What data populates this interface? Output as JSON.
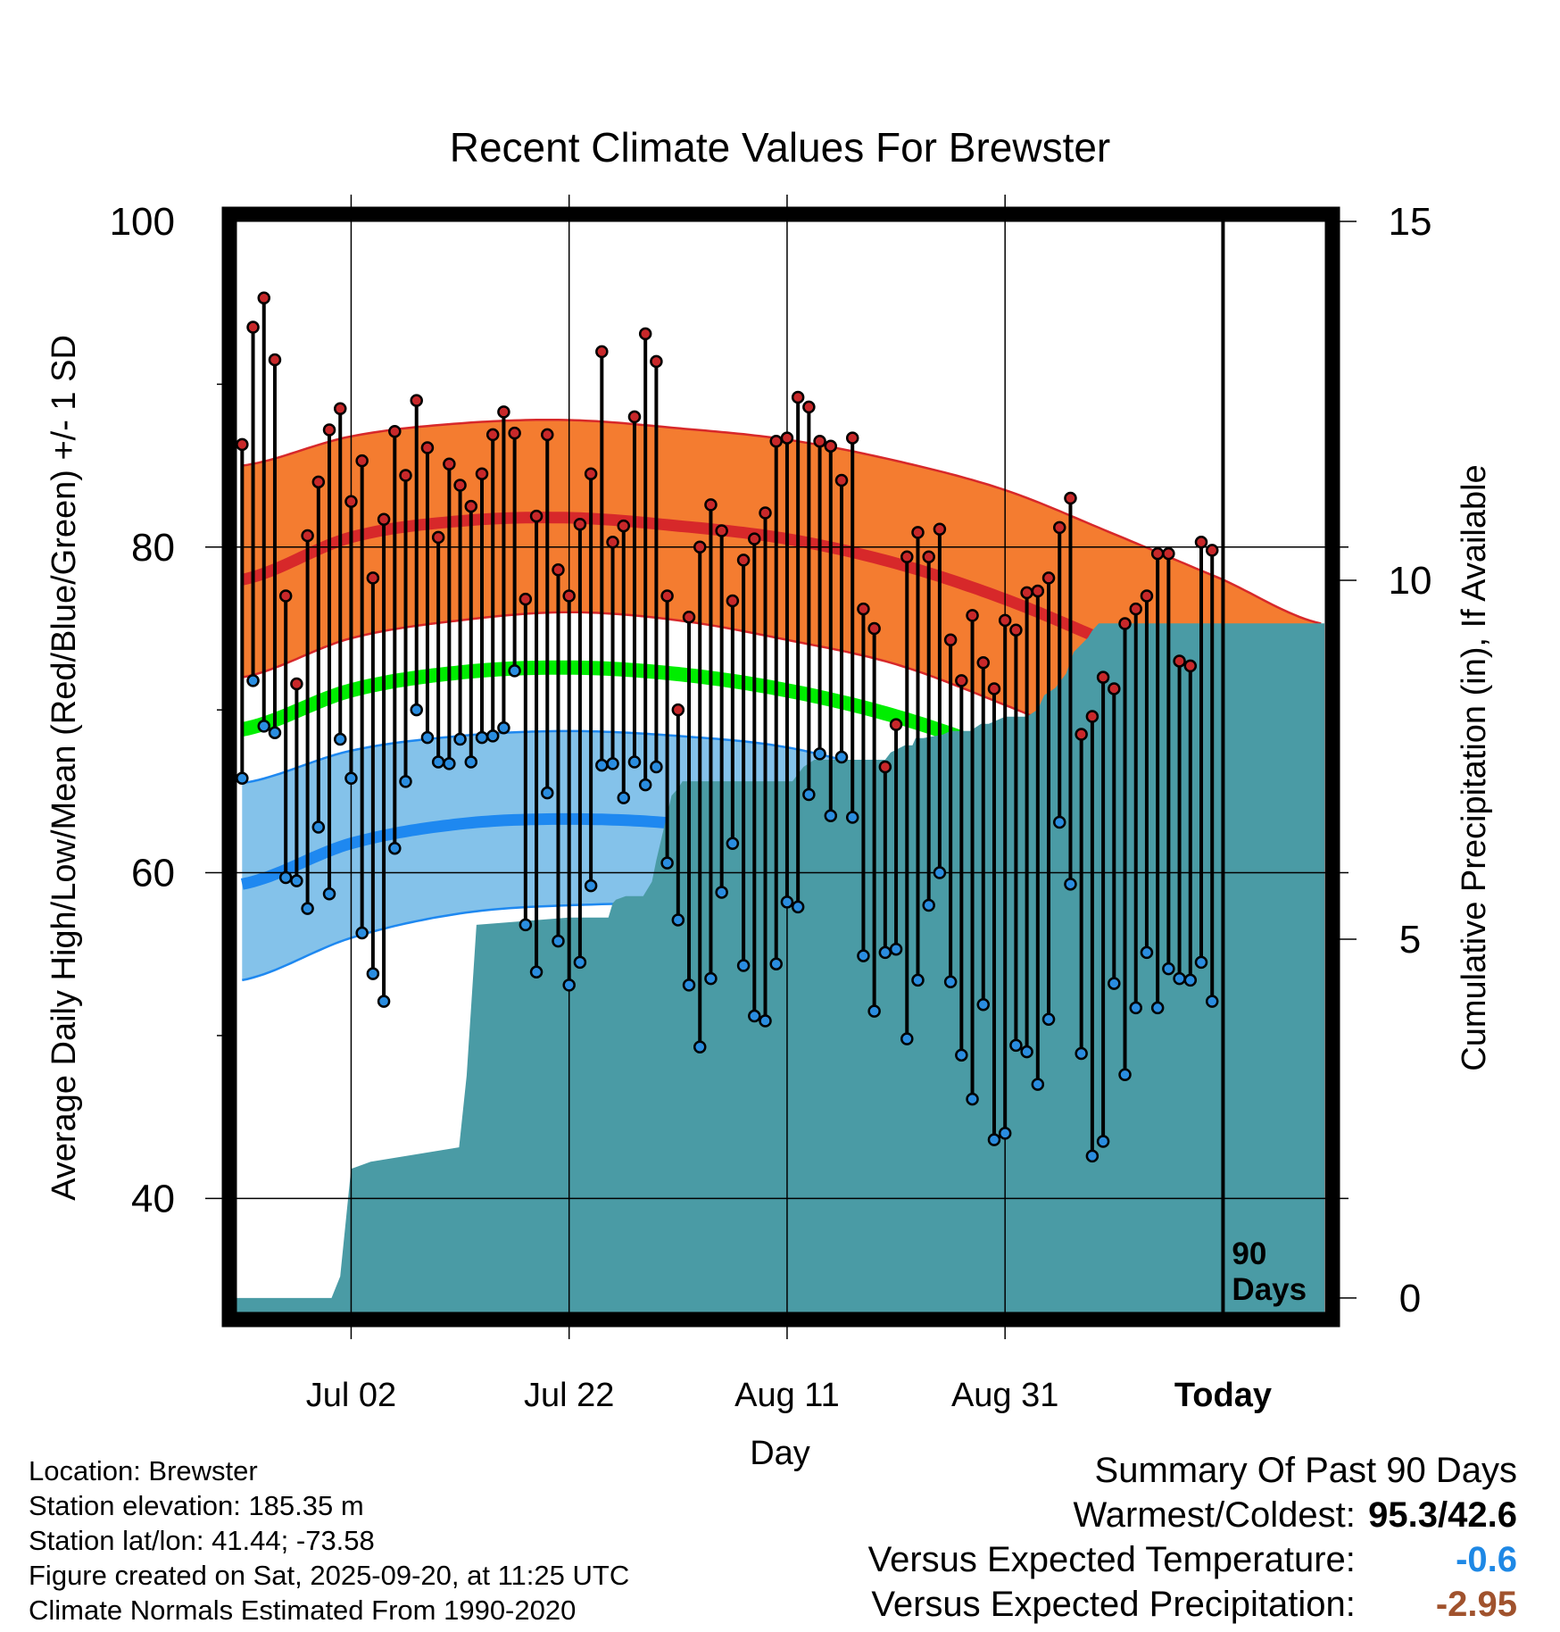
{
  "chart_data": {
    "type": "line",
    "title": "Recent Climate Values For Brewster",
    "xlabel": "Day",
    "ylabel_left": "Average Daily High/Low/Mean (Red/Blue/Green) +/- 1 SD",
    "ylabel_right": "Cumulative Precipitation (in), If Available",
    "ylim": [
      33,
      100
    ],
    "y2lim": [
      -0.2,
      15
    ],
    "xlim": [
      -10.6,
      89.3
    ],
    "left_ticks": [
      {
        "value": 100,
        "label": "100"
      },
      {
        "value": 80,
        "label": "80"
      },
      {
        "value": 60,
        "label": "60"
      },
      {
        "value": 40,
        "label": "40"
      }
    ],
    "left_minor_ticks": [
      90,
      70,
      50
    ],
    "right_ticks": [
      {
        "value": 15,
        "label": "15"
      },
      {
        "value": 10,
        "label": "10"
      },
      {
        "value": 5,
        "label": "5"
      },
      {
        "value": 0,
        "label": "0"
      }
    ],
    "x_ticks": [
      {
        "day": 0,
        "label": "Jul 02"
      },
      {
        "day": 20,
        "label": "Jul 22"
      },
      {
        "day": 40,
        "label": "Aug 11"
      },
      {
        "day": 60,
        "label": "Aug 31"
      },
      {
        "day": 80,
        "label": "Today"
      }
    ],
    "today_day": 80,
    "today_annotation": [
      "90",
      "Days"
    ],
    "normals": {
      "days": [
        -10,
        0,
        10,
        20,
        30,
        40,
        50,
        60,
        70,
        80,
        89
      ],
      "high_mean": [
        78.0,
        80.6,
        81.6,
        81.8,
        81.3,
        80.5,
        79.0,
        76.8,
        74.0,
        71.0,
        68.2
      ],
      "high_upper": [
        85.0,
        86.8,
        87.6,
        87.8,
        87.3,
        86.6,
        85.3,
        83.5,
        80.8,
        78.0,
        75.3
      ],
      "high_lower": [
        72.0,
        74.4,
        75.5,
        76.0,
        75.5,
        74.3,
        72.8,
        70.3,
        67.5,
        64.5,
        61.3
      ],
      "avg_mean": [
        68.8,
        71.2,
        72.3,
        72.6,
        72.2,
        71.2,
        69.6,
        67.3,
        64.5,
        61.6,
        58.8
      ],
      "low_mean": [
        59.3,
        61.8,
        63.0,
        63.3,
        63.0,
        62.0,
        60.2,
        57.8,
        55.0,
        52.2,
        49.7
      ],
      "low_upper": [
        65.5,
        67.5,
        68.4,
        68.7,
        68.4,
        67.7,
        66.0,
        64.0,
        61.5,
        59.0,
        57.4
      ],
      "low_lower": [
        53.4,
        56.0,
        57.5,
        58.0,
        58.0,
        57.0,
        55.0,
        52.2,
        49.0,
        46.0,
        43.0
      ]
    },
    "series": [
      {
        "name": "Daily High",
        "days": [
          -10,
          -9,
          -8,
          -7,
          -6,
          -5,
          -4,
          -3,
          -2,
          -1,
          0,
          1,
          2,
          3,
          4,
          5,
          6,
          7,
          8,
          9,
          10,
          11,
          12,
          13,
          14,
          15,
          16,
          17,
          18,
          19,
          20,
          21,
          22,
          23,
          24,
          25,
          26,
          27,
          28,
          29,
          30,
          31,
          32,
          33,
          34,
          35,
          36,
          37,
          38,
          39,
          40,
          41,
          42,
          43,
          44,
          45,
          46,
          47,
          48,
          49,
          50,
          51,
          52,
          53,
          54,
          55,
          56,
          57,
          58,
          59,
          60,
          61,
          62,
          63,
          64,
          65,
          66,
          67,
          68,
          69,
          70,
          71,
          72,
          73,
          74,
          75,
          76,
          77,
          78,
          79
        ],
        "values": [
          86.3,
          93.5,
          95.3,
          91.5,
          77.0,
          71.6,
          80.7,
          84.0,
          87.2,
          88.5,
          82.8,
          85.3,
          78.1,
          81.7,
          87.1,
          84.4,
          89.0,
          86.1,
          80.6,
          85.1,
          83.8,
          82.5,
          84.5,
          86.9,
          88.3,
          87.0,
          76.8,
          81.9,
          86.9,
          78.6,
          77.0,
          81.4,
          84.5,
          92.0,
          80.3,
          81.3,
          88.0,
          93.1,
          91.4,
          77.0,
          70.0,
          75.7,
          80.0,
          82.6,
          81.0,
          76.7,
          79.2,
          80.5,
          82.1,
          86.5,
          86.7,
          89.2,
          88.6,
          86.5,
          86.2,
          84.1,
          86.7,
          76.2,
          75.0,
          66.5,
          69.1,
          79.4,
          80.9,
          79.4,
          81.1,
          74.3,
          71.8,
          75.8,
          72.9,
          71.3,
          75.5,
          74.9,
          77.2,
          77.3,
          78.1,
          81.2,
          83.0,
          68.5,
          69.6,
          72.0,
          71.3,
          75.3,
          76.2,
          77.0,
          79.6,
          79.6,
          73.0,
          72.7,
          80.3,
          79.8
        ]
      },
      {
        "name": "Daily Low",
        "days": [
          -10,
          -9,
          -8,
          -7,
          -6,
          -5,
          -4,
          -3,
          -2,
          -1,
          0,
          1,
          2,
          3,
          4,
          5,
          6,
          7,
          8,
          9,
          10,
          11,
          12,
          13,
          14,
          15,
          16,
          17,
          18,
          19,
          20,
          21,
          22,
          23,
          24,
          25,
          26,
          27,
          28,
          29,
          30,
          31,
          32,
          33,
          34,
          35,
          36,
          37,
          38,
          39,
          40,
          41,
          42,
          43,
          44,
          45,
          46,
          47,
          48,
          49,
          50,
          51,
          52,
          53,
          54,
          55,
          56,
          57,
          58,
          59,
          60,
          61,
          62,
          63,
          64,
          65,
          66,
          67,
          68,
          69,
          70,
          71,
          72,
          73,
          74,
          75,
          76,
          77,
          78,
          79
        ],
        "values": [
          65.8,
          71.8,
          69.0,
          68.6,
          59.7,
          59.5,
          57.8,
          62.8,
          58.7,
          68.2,
          65.8,
          56.3,
          53.8,
          52.1,
          61.5,
          65.6,
          70.0,
          68.3,
          66.8,
          66.7,
          68.2,
          66.8,
          68.3,
          68.4,
          68.9,
          72.4,
          56.8,
          53.9,
          64.9,
          55.8,
          53.1,
          54.5,
          59.2,
          66.6,
          66.7,
          64.6,
          66.8,
          65.4,
          66.5,
          60.6,
          57.1,
          53.1,
          49.3,
          53.5,
          58.8,
          61.8,
          54.3,
          51.2,
          50.9,
          54.4,
          58.2,
          57.9,
          64.8,
          67.3,
          63.5,
          67.1,
          63.4,
          54.9,
          51.5,
          55.1,
          55.3,
          49.8,
          53.4,
          58.0,
          60.0,
          53.3,
          48.8,
          46.1,
          51.9,
          43.6,
          44.0,
          49.4,
          49.0,
          47.0,
          51.0,
          63.1,
          59.3,
          48.9,
          42.6,
          43.5,
          53.2,
          47.6,
          51.7,
          55.1,
          51.7,
          54.1,
          53.5,
          53.4,
          54.5,
          52.1
        ]
      },
      {
        "name": "Cumulative Precipitation",
        "days": [
          -10.6,
          -2.2,
          -1.8,
          -1.0,
          0.0,
          1.8,
          9.9,
          10.6,
          11.5,
          20,
          23.6,
          24.0,
          24.3,
          25.2,
          26.8,
          27.6,
          28.0,
          29.4,
          30.0,
          30.4,
          31.0,
          36.0,
          38.0,
          40.5,
          41.5,
          42.5,
          49.0,
          49.5,
          50.8,
          51.5,
          51.8,
          52.5,
          54.3,
          55.0,
          56.8,
          57.8,
          58.5,
          60.0,
          61.0,
          62.0,
          63.0,
          63.6,
          64.6,
          65.6,
          66.3,
          67.6,
          68.0,
          68.6,
          89.3
        ],
        "values": [
          0,
          0,
          0,
          0.3,
          1.8,
          1.9,
          2.1,
          3.1,
          5.2,
          5.3,
          5.3,
          5.5,
          5.55,
          5.6,
          5.6,
          5.8,
          6.1,
          7.0,
          7.1,
          7.2,
          7.2,
          7.2,
          7.2,
          7.2,
          7.4,
          7.5,
          7.5,
          7.6,
          7.7,
          7.7,
          7.8,
          7.8,
          7.85,
          7.9,
          7.9,
          8.0,
          8.0,
          8.1,
          8.1,
          8.1,
          8.2,
          8.4,
          8.5,
          8.7,
          9.0,
          9.2,
          9.3,
          9.4,
          9.4
        ]
      }
    ]
  },
  "footer": {
    "location": "Location: Brewster",
    "elevation": "Station elevation: 185.35 m",
    "latlon": "Station lat/lon: 41.44; -73.58",
    "created": "Figure created on Sat, 2025-09-20, at 11:25 UTC",
    "normals_period": "Climate Normals Estimated From 1990-2020"
  },
  "summary": {
    "heading": "Summary Of Past 90 Days",
    "warmest_coldest_label": "Warmest/Coldest:",
    "warmest_coldest_value": "95.3/42.6",
    "temp_label": "Versus Expected Temperature:",
    "temp_value": "-0.6",
    "temp_color": "#1E88E5",
    "precip_label": "Versus Expected Precipitation:",
    "precip_value": "-2.95",
    "precip_color": "#A0522D"
  },
  "colors": {
    "high_band": "#F47C30",
    "high_mean": "#D7282A",
    "avg_line": "#00EE00",
    "low_band": "#84C2EA",
    "low_mean": "#1E88F0",
    "precip_fill": "#4A9BA5",
    "high_dot": "#C8282A",
    "low_dot": "#2A8DE0"
  }
}
